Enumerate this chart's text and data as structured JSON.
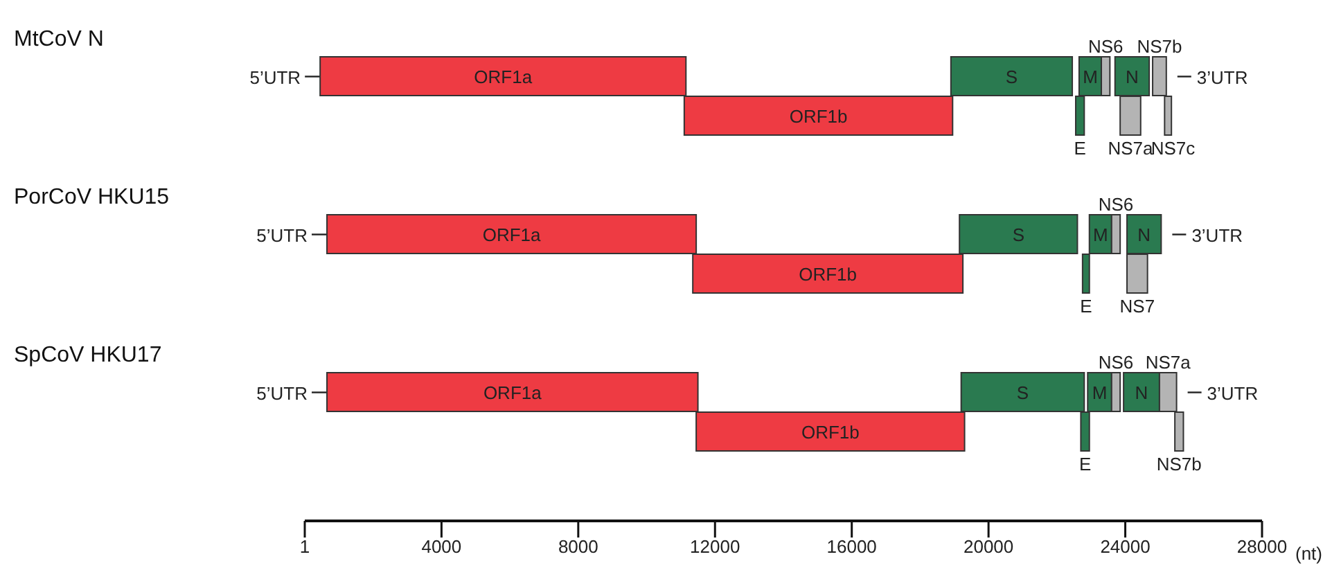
{
  "chart_data": {
    "type": "bar",
    "orientation": "horizontal",
    "categories": [
      "MtCoV N",
      null,
      null,
      null,
      "PorCoV HKU15",
      null,
      null,
      null,
      "SpCoV HKU17",
      null,
      null
    ],
    "xlim": [
      1,
      28000
    ],
    "xticks": [
      1,
      4000,
      8000,
      12000,
      16000,
      20000,
      24000,
      28000
    ],
    "xlabel": "(nt)",
    "annotations": [
      "5’UTR",
      "3’UTR",
      "5’UTR",
      "3’UTR",
      "5’UTR",
      "3’UTR"
    ],
    "series": [
      {
        "name": "ORF1a",
        "color": "#ee3b43",
        "values": [
          null,
          10700,
          null,
          null,
          null,
          10800,
          null,
          null,
          null,
          10850,
          null
        ],
        "base": [
          null,
          450,
          null,
          null,
          null,
          650,
          null,
          null,
          null,
          650,
          null
        ]
      },
      {
        "name": "ORF1b",
        "color": "#ee3b43",
        "values": [
          null,
          null,
          7850,
          null,
          null,
          null,
          7900,
          null,
          null,
          null,
          7850
        ],
        "base": [
          null,
          null,
          11100,
          null,
          null,
          null,
          11350,
          null,
          null,
          null,
          11450
        ]
      },
      {
        "name": "S",
        "color": "#2a7a50",
        "values": [
          null,
          3550,
          null,
          null,
          null,
          3450,
          null,
          null,
          null,
          3600,
          null
        ],
        "base": [
          null,
          18900,
          null,
          null,
          null,
          19150,
          null,
          null,
          null,
          19200,
          null
        ]
      },
      {
        "name": "E",
        "color": "#2a7a50",
        "values": [
          null,
          null,
          250,
          null,
          null,
          null,
          200,
          null,
          null,
          null,
          250
        ],
        "base": [
          null,
          null,
          22550,
          null,
          null,
          null,
          22750,
          null,
          null,
          null,
          22700
        ]
      },
      {
        "name": "M",
        "color": "#2a7a50",
        "values": [
          null,
          650,
          null,
          null,
          null,
          650,
          null,
          null,
          null,
          700,
          null
        ],
        "base": [
          null,
          22650,
          null,
          null,
          null,
          22950,
          null,
          null,
          null,
          22900,
          null
        ]
      },
      {
        "name": "NS6",
        "color": "#b4b4b4",
        "values": [
          null,
          250,
          null,
          null,
          null,
          250,
          null,
          null,
          null,
          250,
          null
        ],
        "base": [
          null,
          23300,
          null,
          null,
          null,
          23600,
          null,
          null,
          null,
          23600,
          null
        ]
      },
      {
        "name": "N",
        "color": "#2a7a50",
        "values": [
          null,
          1000,
          null,
          null,
          null,
          1000,
          null,
          null,
          null,
          1050,
          null
        ],
        "base": [
          null,
          23700,
          null,
          null,
          null,
          24050,
          null,
          null,
          null,
          23950,
          null
        ]
      },
      {
        "name": "NS7a",
        "color": "#b4b4b4",
        "values": [
          null,
          null,
          600,
          null,
          null,
          null,
          null,
          null,
          null,
          500,
          null
        ],
        "base": [
          null,
          null,
          23850,
          null,
          null,
          null,
          null,
          null,
          null,
          25000,
          null
        ]
      },
      {
        "name": "NS7b",
        "color": "#b4b4b4",
        "values": [
          null,
          400,
          null,
          null,
          null,
          null,
          null,
          null,
          null,
          null,
          250
        ],
        "base": [
          null,
          24800,
          null,
          null,
          null,
          null,
          null,
          null,
          null,
          null,
          25450
        ]
      },
      {
        "name": "NS7c",
        "color": "#b4b4b4",
        "values": [
          null,
          null,
          200,
          null,
          null,
          null,
          null,
          null,
          null,
          null,
          null
        ],
        "base": [
          null,
          null,
          25150,
          null,
          null,
          null,
          null,
          null,
          null,
          null,
          null
        ]
      },
      {
        "name": "NS7",
        "color": "#b4b4b4",
        "values": [
          null,
          null,
          null,
          null,
          null,
          null,
          600,
          null,
          null,
          null,
          null
        ],
        "base": [
          null,
          null,
          null,
          null,
          null,
          null,
          24050,
          null,
          null,
          null,
          null
        ]
      }
    ]
  }
}
